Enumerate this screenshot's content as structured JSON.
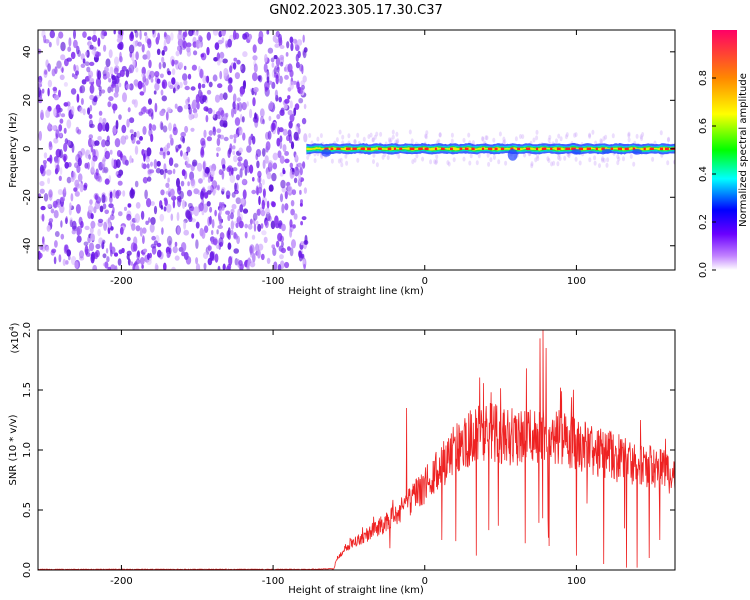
{
  "title": "GN02.2023.305.17.30.C37",
  "colors": {
    "snr_line": "#ee2222",
    "noise_purple": "#7a22ee",
    "trace_red": "#ff2020",
    "trace_green": "#22dd44",
    "trace_blue": "#2244ff"
  },
  "chart_data": [
    {
      "type": "heatmap",
      "xlabel": "Height of straight line (km)",
      "ylabel": "Frequency (Hz)",
      "xlim": [
        -255,
        165
      ],
      "ylim": [
        -50,
        49
      ],
      "xticks": [
        -200,
        -100,
        0,
        100
      ],
      "xtick_labels": [
        "-200",
        "-100",
        "0",
        "100"
      ],
      "yticks": [
        -40,
        -20,
        0,
        20,
        40
      ],
      "ytick_labels": [
        "-40",
        "-20",
        "0",
        "20",
        "40"
      ],
      "noise_region_x": [
        -255,
        -78
      ],
      "signal_frequency_hz": 0,
      "colorbar": {
        "label": "Normalized spectral amplitude",
        "range": [
          0,
          1
        ],
        "ticks": [
          0.0,
          0.2,
          0.4,
          0.6,
          0.8
        ],
        "tick_labels": [
          "0.0",
          "0.2",
          "0.4",
          "0.6",
          "0.8"
        ],
        "colormap": [
          "#ffffff",
          "#8a2be2",
          "#0000ff",
          "#00ffff",
          "#00ff00",
          "#ffff00",
          "#ff8800",
          "#ff0055"
        ]
      },
      "grid": false
    },
    {
      "type": "line",
      "xlabel": "Height of straight line (km)",
      "ylabel": "SNR (10 * v/v)",
      "y_scale_note": "(x10",
      "y_scale_exp": "4",
      "y_scale_close": ")",
      "xlim": [
        -255,
        165
      ],
      "ylim": [
        0,
        2.0
      ],
      "xticks": [
        -200,
        -100,
        0,
        100
      ],
      "xtick_labels": [
        "-200",
        "-100",
        "0",
        "100"
      ],
      "yticks": [
        0.0,
        0.5,
        1.0,
        1.5,
        2.0
      ],
      "ytick_labels": [
        "0.0",
        "0.5",
        "1.0",
        "1.5",
        "2.0"
      ],
      "envelope": {
        "x": [
          -255,
          -150,
          -80,
          -60,
          -57,
          -50,
          -40,
          -30,
          -20,
          -10,
          0,
          10,
          20,
          30,
          40,
          50,
          60,
          70,
          80,
          90,
          100,
          110,
          120,
          130,
          140,
          150,
          160,
          165
        ],
        "y": [
          0.005,
          0.005,
          0.005,
          0.01,
          0.12,
          0.22,
          0.28,
          0.36,
          0.45,
          0.56,
          0.7,
          0.86,
          1.0,
          1.1,
          1.15,
          1.13,
          1.1,
          1.12,
          1.14,
          1.1,
          1.05,
          1.0,
          0.96,
          0.92,
          0.88,
          0.85,
          0.82,
          0.8
        ]
      },
      "peaks": [
        {
          "x": -12,
          "y": 1.35
        },
        {
          "x": 67,
          "y": 1.68
        },
        {
          "x": 76,
          "y": 1.93
        },
        {
          "x": 78,
          "y": 2.0
        },
        {
          "x": 80,
          "y": 1.85
        }
      ],
      "dips": [
        {
          "x": 34,
          "y": 0.12
        },
        {
          "x": 82,
          "y": 0.2
        },
        {
          "x": 100,
          "y": 0.12
        },
        {
          "x": 118,
          "y": 0.05
        },
        {
          "x": 133,
          "y": 0.02
        },
        {
          "x": 140,
          "y": 0.02
        },
        {
          "x": 148,
          "y": 0.1
        },
        {
          "x": 155,
          "y": 0.25
        }
      ],
      "grid": false
    }
  ]
}
